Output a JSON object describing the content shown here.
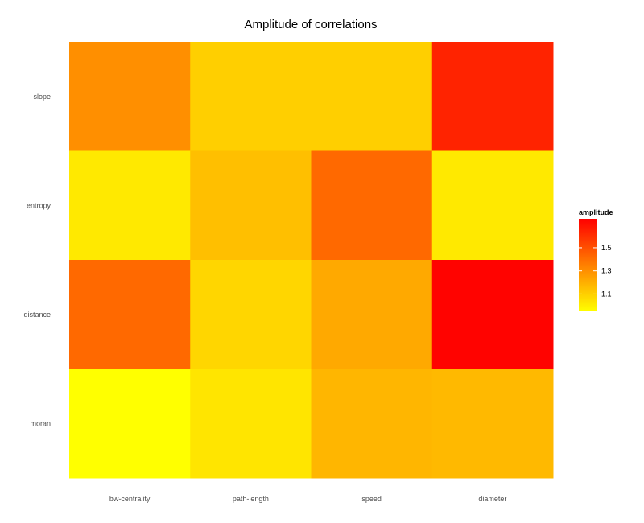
{
  "chart_data": {
    "type": "heatmap",
    "title": "Amplitude of correlations",
    "xlabel": "",
    "ylabel": "",
    "x_categories": [
      "bw-centrality",
      "path-length",
      "speed",
      "diameter"
    ],
    "y_categories": [
      "slope",
      "entropy",
      "distance",
      "moran"
    ],
    "values": [
      [
        1.3,
        1.1,
        1.1,
        1.64
      ],
      [
        1.02,
        1.15,
        1.42,
        1.02
      ],
      [
        1.42,
        1.08,
        1.22,
        1.74
      ],
      [
        0.95,
        1.03,
        1.18,
        1.17
      ]
    ],
    "color_scale": {
      "low_color": "#ffff00",
      "high_color": "#ff0000",
      "domain": [
        0.95,
        1.75
      ]
    },
    "legend": {
      "title": "amplitude",
      "ticks": [
        1.1,
        1.3,
        1.5
      ],
      "tick_labels": [
        "1.1",
        "1.3",
        "1.5"
      ],
      "position": "right"
    }
  }
}
